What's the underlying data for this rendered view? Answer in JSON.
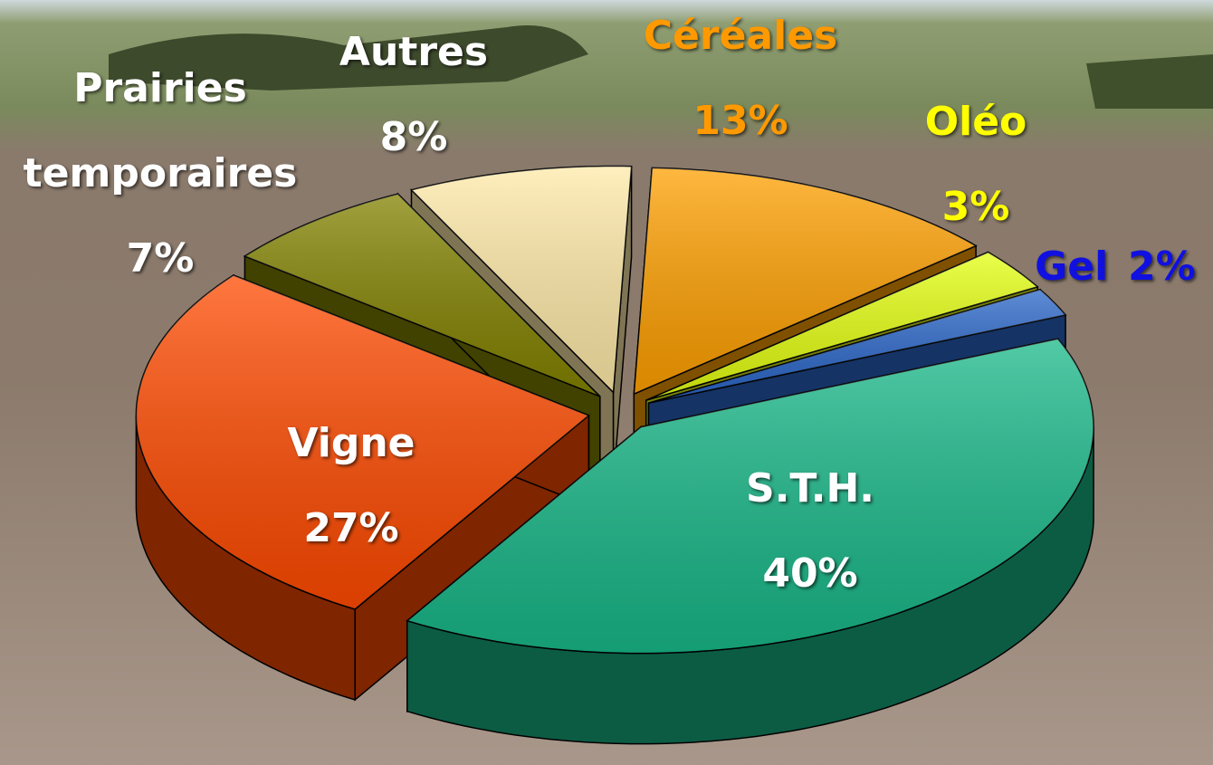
{
  "chart_data": {
    "type": "pie3d",
    "categories": [
      "Céréales",
      "Oléo",
      "Gel",
      "S.T.H.",
      "Vigne",
      "Prairies temporaires",
      "Autres"
    ],
    "values": [
      13,
      3,
      2,
      40,
      27,
      7,
      8
    ],
    "value_labels": [
      "13%",
      "3%",
      "2%",
      "40%",
      "27%",
      "7%",
      "8%"
    ],
    "colors": [
      "#ffa000",
      "#e4ff10",
      "#2a66c8",
      "#18b888",
      "#ff4a00",
      "#828200",
      "#ffeaa8"
    ],
    "label_colors": [
      "#ff9900",
      "#ffff00",
      "#1010e0",
      "#ffffff",
      "#ffffff",
      "#ffffff",
      "#ffffff"
    ]
  }
}
